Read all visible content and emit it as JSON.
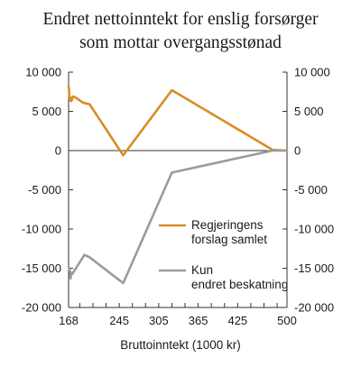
{
  "chart_data": {
    "type": "line",
    "title": [
      "Endret nettoinntekt for enslig forsørger",
      "som mottar overgangsstønad"
    ],
    "xlabel": "Bruttoinntekt (1000 kr)",
    "ylabel": "",
    "xlim": [
      168,
      500
    ],
    "ylim": [
      -20000,
      10000
    ],
    "x_ticks": [
      168,
      185,
      205,
      225,
      245,
      265,
      285,
      305,
      325,
      345,
      365,
      385,
      405,
      425,
      445,
      465,
      485,
      500
    ],
    "x_tick_labels": [
      "168",
      "",
      "",
      "",
      "245",
      "",
      "",
      "305",
      "",
      "",
      "365",
      "",
      "",
      "425",
      "",
      "",
      "",
      "500"
    ],
    "y_ticks": [
      10000,
      5000,
      0,
      -5000,
      -10000,
      -15000,
      -20000
    ],
    "y_tick_labels": [
      "10 000",
      "5 000",
      "0",
      "-5 000",
      "-10 000",
      "-15 000",
      "-20 000"
    ],
    "grid": false,
    "legend_position": "right, lower-middle",
    "series": [
      {
        "name": "Regjeringens forslag samlet",
        "color": "#d98c26",
        "x": [
          168,
          168.6,
          169.2,
          170,
          171,
          172,
          175,
          178,
          190,
          200,
          251,
          325,
          478,
          500
        ],
        "y": [
          8200,
          7800,
          7000,
          6400,
          6800,
          6300,
          6900,
          6800,
          6100,
          5900,
          -600,
          7700,
          100,
          0
        ]
      },
      {
        "name": "Kun endret beskatning",
        "color": "#9b9b9b",
        "x": [
          168,
          170,
          171,
          172,
          174,
          177,
          192,
          200,
          251,
          325,
          478,
          500
        ],
        "y": [
          -14800,
          -15300,
          -16300,
          -15600,
          -15700,
          -15300,
          -13300,
          -13600,
          -16900,
          -2800,
          0,
          0
        ]
      }
    ]
  }
}
